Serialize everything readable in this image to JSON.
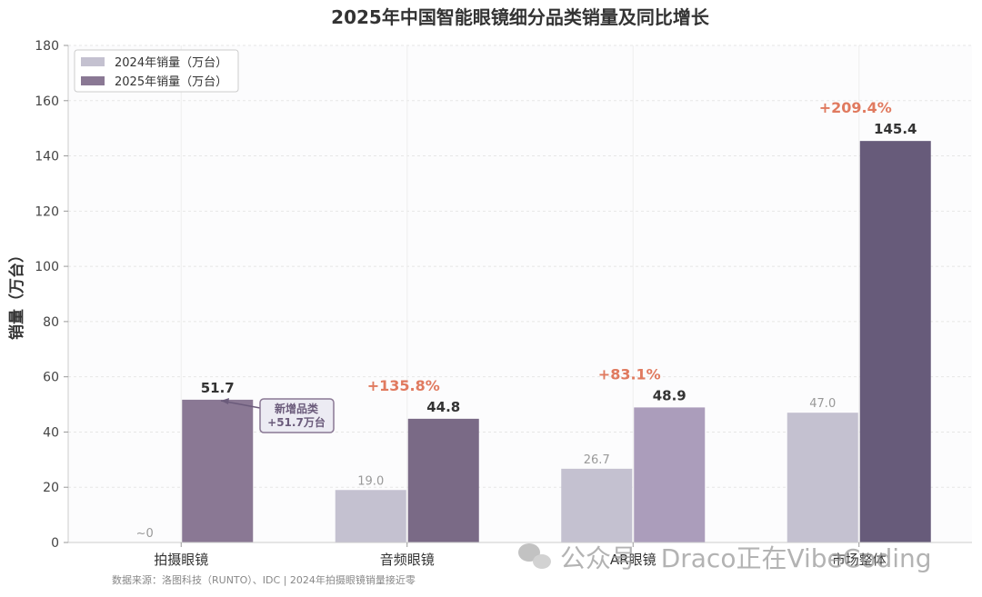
{
  "chart_data": {
    "type": "bar",
    "title": "2025年中国智能眼镜细分品类销量及同比增长",
    "xlabel": "",
    "ylabel": "销量（万台）",
    "ylim": [
      0,
      180
    ],
    "yticks": [
      0,
      20,
      40,
      60,
      80,
      100,
      120,
      140,
      160,
      180
    ],
    "grid": true,
    "legend_position": "top-left",
    "categories": [
      "拍摄眼镜",
      "音频眼镜",
      "AR眼镜",
      "市场整体"
    ],
    "series": [
      {
        "name": "2024年销量（万台）",
        "values": [
          0,
          19.0,
          26.7,
          47.0
        ],
        "labels": [
          "~0",
          "19.0",
          "26.7",
          "47.0"
        ],
        "colors": [
          "#c4c1d0",
          "#c4c1d0",
          "#c4c1d0",
          "#c4c1d0"
        ]
      },
      {
        "name": "2025年销量（万台）",
        "values": [
          51.7,
          44.8,
          48.9,
          145.4
        ],
        "labels": [
          "51.7",
          "44.8",
          "48.9",
          "145.4"
        ],
        "colors": [
          "#8a7894",
          "#7a6a86",
          "#ab9dbb",
          "#675b7a"
        ]
      }
    ],
    "growth": [
      "",
      "+135.8%",
      "+83.1%",
      "+209.4%"
    ],
    "annotation": {
      "category": "拍摄眼镜",
      "lines": [
        "新增品类",
        "+51.7万台"
      ]
    },
    "source": "数据来源：洛图科技（RUNTO）、IDC | 2024年拍摄眼镜销量接近零",
    "colors": {
      "growth": "#e07a5f",
      "legend_2024": "#c4c1d0",
      "legend_2025": "#8a7894",
      "annotation_border": "#8a7894",
      "annotation_fill": "#ecebf3"
    }
  },
  "watermark": {
    "text": "公众号 · Draco正在VibeCoding",
    "icon": "wechat-icon"
  }
}
